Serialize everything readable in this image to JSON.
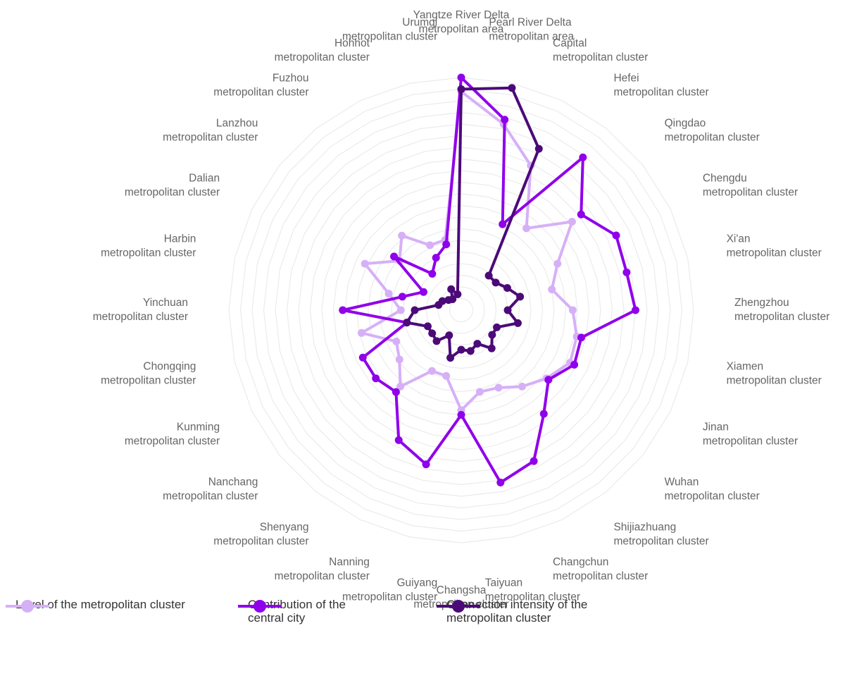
{
  "chart_data": {
    "type": "radar",
    "categories": [
      "Yangtze River Delta\nmetropolitan area",
      "Pearl River Delta\nmetropolitan area",
      "Capital\nmetropolitan cluster",
      "Hefei\nmetropolitan cluster",
      "Qingdao\nmetropolitan cluster",
      "Chengdu\nmetropolitan cluster",
      "Xi'an\nmetropolitan cluster",
      "Zhengzhou\nmetropolitan cluster",
      "Xiamen\nmetropolitan cluster",
      "Jinan\nmetropolitan cluster",
      "Wuhan\nmetropolitan cluster",
      "Shijiazhuang\nmetropolitan cluster",
      "Changchun\nmetropolitan cluster",
      "Taiyuan\nmetropolitan cluster",
      "Changsha\nmetropolitan cluster",
      "Guiyang\nmetropolitan cluster",
      "Nanning\nmetropolitan cluster",
      "Shenyang\nmetropolitan cluster",
      "Nanchang\nmetropolitan cluster",
      "Kunming\nmetropolitan cluster",
      "Chongqing\nmetropolitan cluster",
      "Yinchuan\nmetropolitan cluster",
      "Harbin\nmetropolitan cluster",
      "Dalian\nmetropolitan cluster",
      "Lanzhou\nmetropolitan cluster",
      "Fuzhou\nmetropolitan cluster",
      "Hohhot\nmetropolitan cluster",
      "Urumqi\nmetropolitan cluster"
    ],
    "series": [
      {
        "name": "Level of the metropolitan cluster",
        "color": "#d6b0f7",
        "values": [
          94,
          82,
          69,
          45,
          61,
          46,
          40,
          48,
          51,
          52,
          47,
          42,
          37,
          36,
          43,
          29,
          29,
          42,
          34,
          31,
          44,
          26,
          32,
          46,
          34,
          41,
          31,
          31
        ]
      },
      {
        "name": "Contribution of the central city",
        "color": "#9000ea",
        "values": [
          100,
          84,
          41,
          84,
          66,
          74,
          73,
          75,
          53,
          54,
          48,
          57,
          72,
          76,
          45,
          68,
          62,
          45,
          47,
          47,
          24,
          51,
          26,
          18,
          37,
          20,
          25,
          29
        ]
      },
      {
        "name": "Connection intensity of the metropolitan cluster",
        "color": "#4b0a78",
        "values": [
          95,
          98,
          77,
          19,
          19,
          22,
          26,
          20,
          25,
          17,
          17,
          21,
          16,
          18,
          17,
          21,
          12,
          17,
          16,
          16,
          24,
          20,
          10,
          9,
          7,
          6,
          10,
          7
        ]
      }
    ],
    "ylim": [
      0,
      100
    ],
    "yticks": [
      0,
      5,
      10,
      15,
      20,
      25,
      30,
      35,
      40,
      45,
      50,
      55,
      60,
      65,
      70,
      75,
      80,
      85,
      90,
      95,
      100
    ],
    "grid": true,
    "legend": "bottom"
  }
}
